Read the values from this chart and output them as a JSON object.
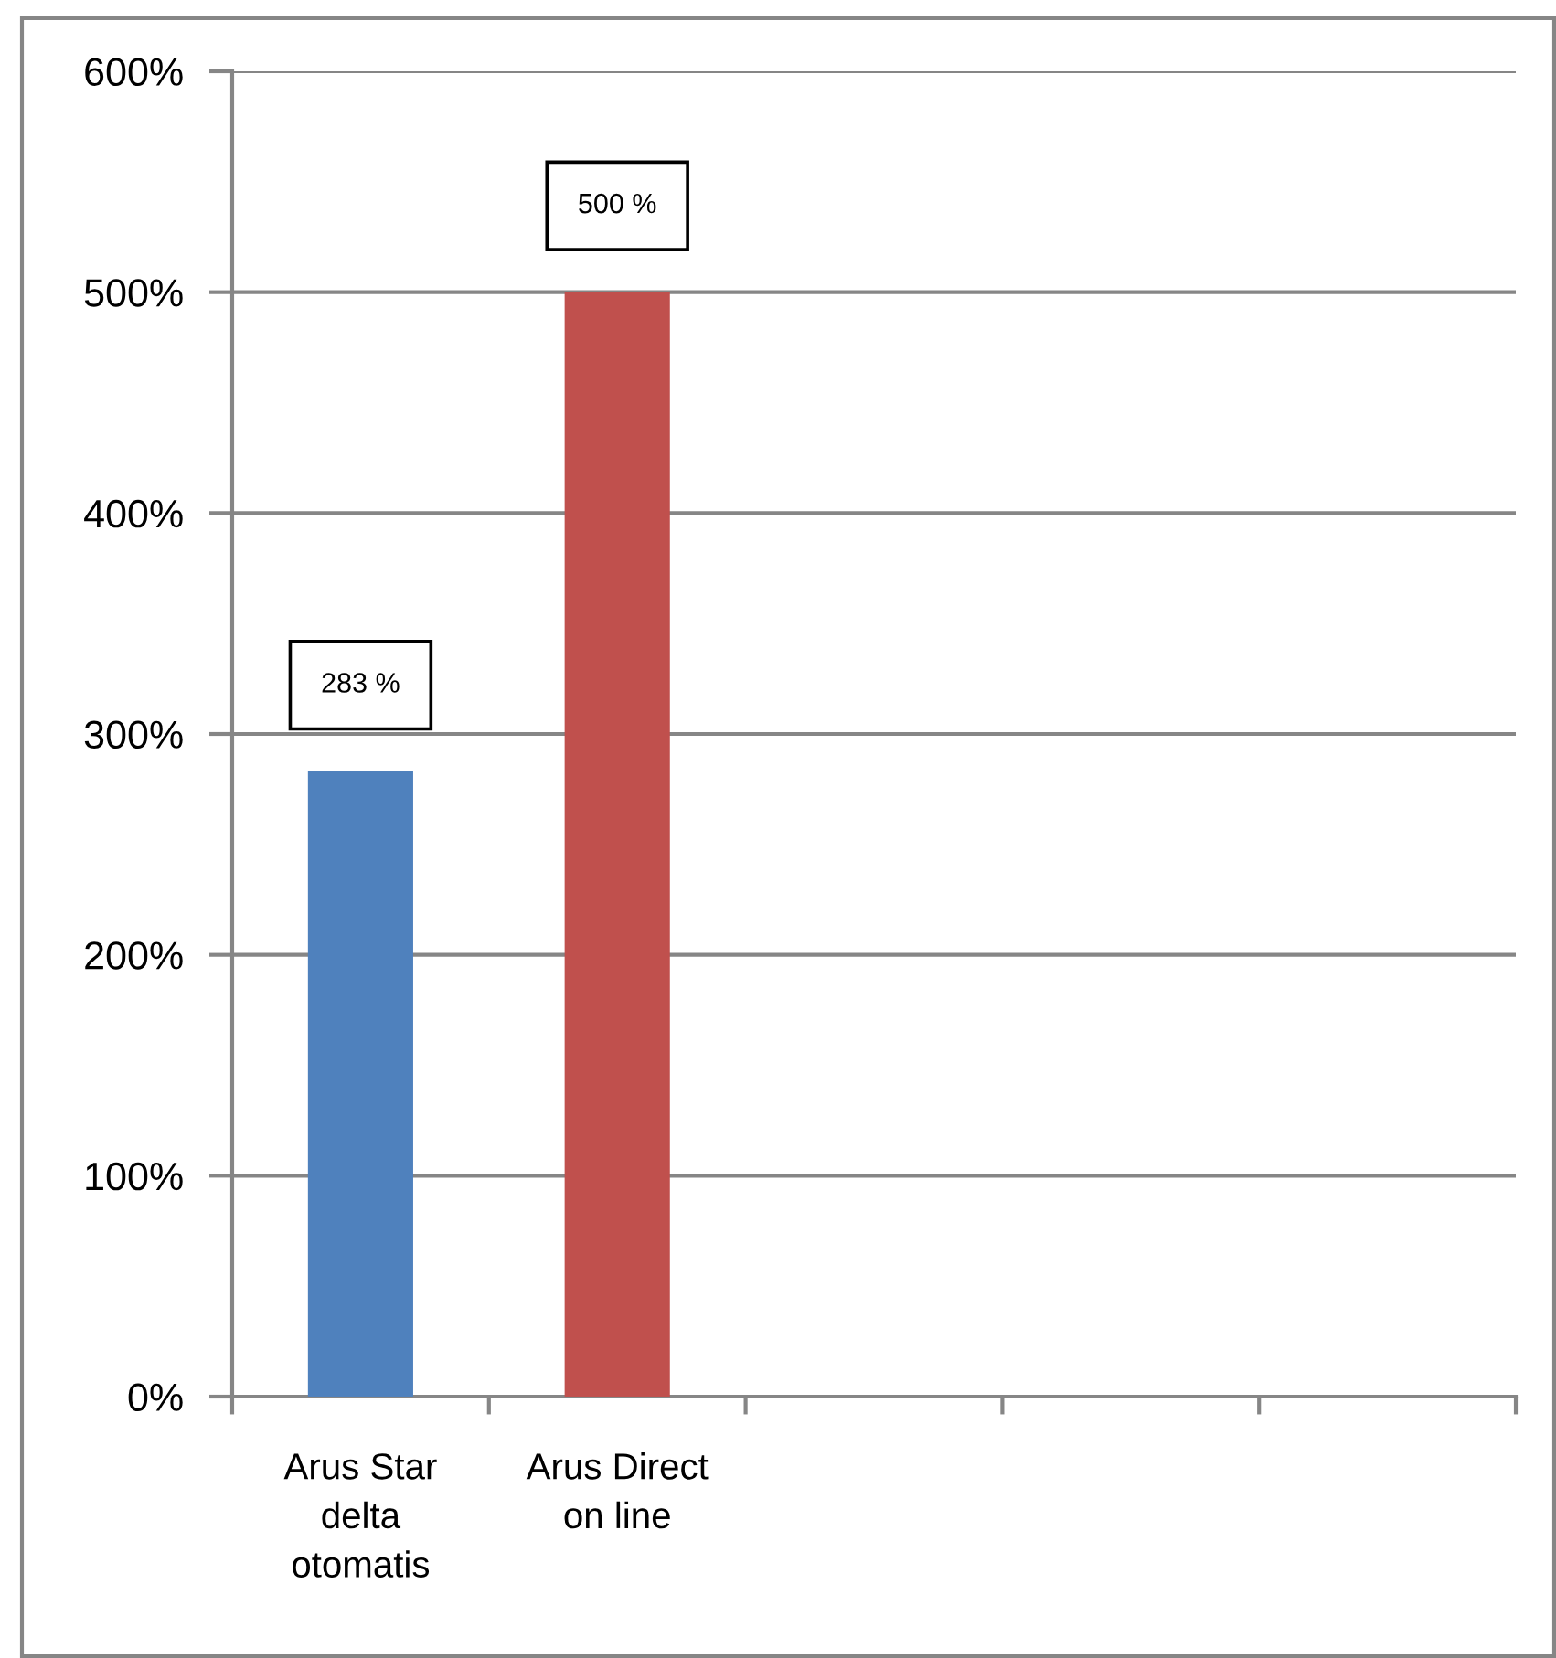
{
  "chart_data": {
    "type": "bar",
    "categories": [
      "Arus Star\ndelta\notomatis",
      "Arus Direct\non line",
      null,
      null,
      null
    ],
    "values": [
      283,
      500,
      null,
      null,
      null
    ],
    "colors": [
      "#4f81bd",
      "#c0504d",
      "#4f81bd",
      "#4f81bd",
      "#4f81bd"
    ],
    "value_labels": [
      "283 %",
      "500 %",
      null,
      null,
      null
    ],
    "ylim": [
      0,
      600
    ],
    "yticks": [
      {
        "value": 0,
        "label": "0%"
      },
      {
        "value": 100,
        "label": "100%"
      },
      {
        "value": 200,
        "label": "200%"
      },
      {
        "value": 300,
        "label": "300%"
      },
      {
        "value": 400,
        "label": "400%"
      },
      {
        "value": 500,
        "label": "500%"
      },
      {
        "value": 600,
        "label": "600%"
      }
    ],
    "grid": "y"
  }
}
